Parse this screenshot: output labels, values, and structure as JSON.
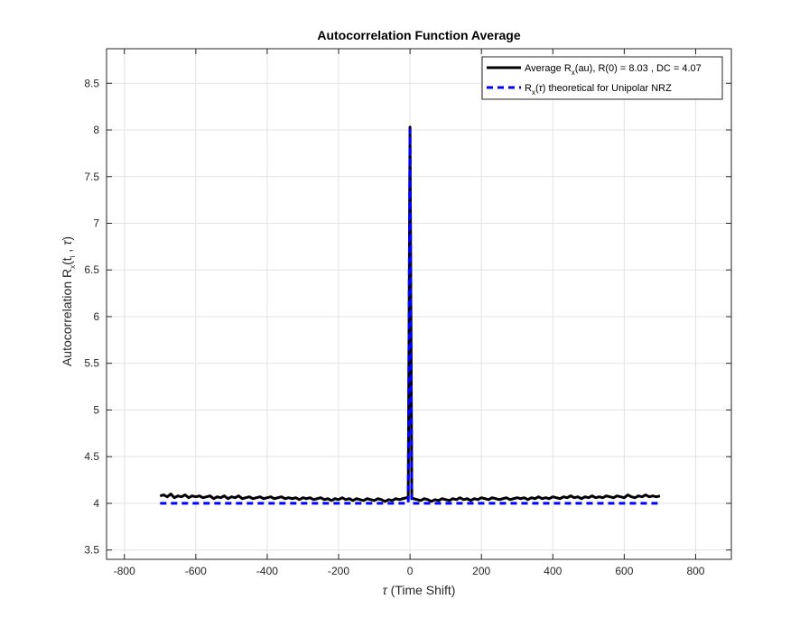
{
  "chart_data": {
    "type": "line",
    "title": "Autocorrelation Function Average",
    "xlabel_symbol": "τ",
    "xlabel_text": " (Time Shift)",
    "ylabel": {
      "main": "Autocorrelation R",
      "sub": "x",
      "args_open": "(t",
      "args_sub": "i",
      "args_sep": " , ",
      "args_tau": "τ",
      "args_close": ")"
    },
    "xlim": [
      -850,
      900
    ],
    "ylim": [
      3.4,
      8.87
    ],
    "xticks": [
      -800,
      -600,
      -400,
      -200,
      0,
      200,
      400,
      600,
      800
    ],
    "yticks": [
      3.5,
      4,
      4.5,
      5,
      5.5,
      6,
      6.5,
      7,
      7.5,
      8,
      8.5
    ],
    "xtick_labels": [
      "-800",
      "-600",
      "-400",
      "-200",
      "0",
      "200",
      "400",
      "600",
      "800"
    ],
    "ytick_labels": [
      "3.5",
      "4",
      "4.5",
      "5",
      "5.5",
      "6",
      "6.5",
      "7",
      "7.5",
      "8",
      "8.5"
    ],
    "grid": true,
    "legend_position": "top-right",
    "series": [
      {
        "name_parts": [
          "Average R",
          "x",
          "(au), R(0) = 8.03 , DC = 4.07"
        ],
        "color": "#000000",
        "style": "solid",
        "x": [
          -700,
          -690,
          -680,
          -670,
          -660,
          -650,
          -640,
          -630,
          -620,
          -610,
          -600,
          -590,
          -580,
          -570,
          -560,
          -550,
          -540,
          -530,
          -520,
          -510,
          -500,
          -490,
          -480,
          -470,
          -460,
          -450,
          -440,
          -430,
          -420,
          -410,
          -400,
          -390,
          -380,
          -370,
          -360,
          -350,
          -340,
          -330,
          -320,
          -310,
          -300,
          -290,
          -280,
          -270,
          -260,
          -250,
          -240,
          -230,
          -220,
          -210,
          -200,
          -190,
          -180,
          -170,
          -160,
          -150,
          -140,
          -130,
          -120,
          -110,
          -100,
          -90,
          -80,
          -70,
          -60,
          -50,
          -40,
          -30,
          -20,
          -10,
          -5,
          0,
          5,
          10,
          20,
          30,
          40,
          50,
          60,
          70,
          80,
          90,
          100,
          110,
          120,
          130,
          140,
          150,
          160,
          170,
          180,
          190,
          200,
          210,
          220,
          230,
          240,
          250,
          260,
          270,
          280,
          290,
          300,
          310,
          320,
          330,
          340,
          350,
          360,
          370,
          380,
          390,
          400,
          410,
          420,
          430,
          440,
          450,
          460,
          470,
          480,
          490,
          500,
          510,
          520,
          530,
          540,
          550,
          560,
          570,
          580,
          590,
          600,
          610,
          620,
          630,
          640,
          650,
          660,
          670,
          680,
          690,
          700
        ],
        "y": [
          4.08,
          4.09,
          4.07,
          4.1,
          4.06,
          4.08,
          4.07,
          4.09,
          4.06,
          4.08,
          4.07,
          4.08,
          4.06,
          4.07,
          4.08,
          4.05,
          4.07,
          4.06,
          4.08,
          4.05,
          4.07,
          4.06,
          4.08,
          4.05,
          4.06,
          4.07,
          4.05,
          4.06,
          4.07,
          4.05,
          4.06,
          4.07,
          4.05,
          4.06,
          4.07,
          4.05,
          4.06,
          4.05,
          4.06,
          4.04,
          4.06,
          4.05,
          4.06,
          4.04,
          4.05,
          4.06,
          4.04,
          4.05,
          4.03,
          4.05,
          4.04,
          4.06,
          4.04,
          4.05,
          4.03,
          4.05,
          4.04,
          4.03,
          4.05,
          4.04,
          4.03,
          4.05,
          4.04,
          4.02,
          4.04,
          4.03,
          4.05,
          4.04,
          4.05,
          4.06,
          4.06,
          8.03,
          4.06,
          4.05,
          4.04,
          4.03,
          4.05,
          4.04,
          4.02,
          4.04,
          4.03,
          4.05,
          4.04,
          4.03,
          4.05,
          4.04,
          4.06,
          4.04,
          4.05,
          4.03,
          4.05,
          4.04,
          4.06,
          4.05,
          4.04,
          4.06,
          4.05,
          4.04,
          4.05,
          4.06,
          4.04,
          4.05,
          4.06,
          4.05,
          4.06,
          4.04,
          4.06,
          4.05,
          4.07,
          4.05,
          4.06,
          4.05,
          4.07,
          4.06,
          4.05,
          4.07,
          4.06,
          4.08,
          4.06,
          4.07,
          4.05,
          4.07,
          4.06,
          4.08,
          4.06,
          4.07,
          4.06,
          4.08,
          4.07,
          4.06,
          4.08,
          4.07,
          4.06,
          4.09,
          4.07,
          4.06,
          4.08,
          4.07,
          4.09,
          4.07,
          4.08,
          4.07,
          4.08
        ]
      },
      {
        "name_parts": [
          "R",
          "x",
          "(",
          "τ",
          ") theoretical for Unipolar NRZ"
        ],
        "color": "#0000ff",
        "style": "dashed",
        "x": [
          -700,
          -5,
          0,
          5,
          700
        ],
        "y": [
          4.0,
          4.0,
          8.0,
          4.0,
          4.0
        ]
      }
    ]
  }
}
